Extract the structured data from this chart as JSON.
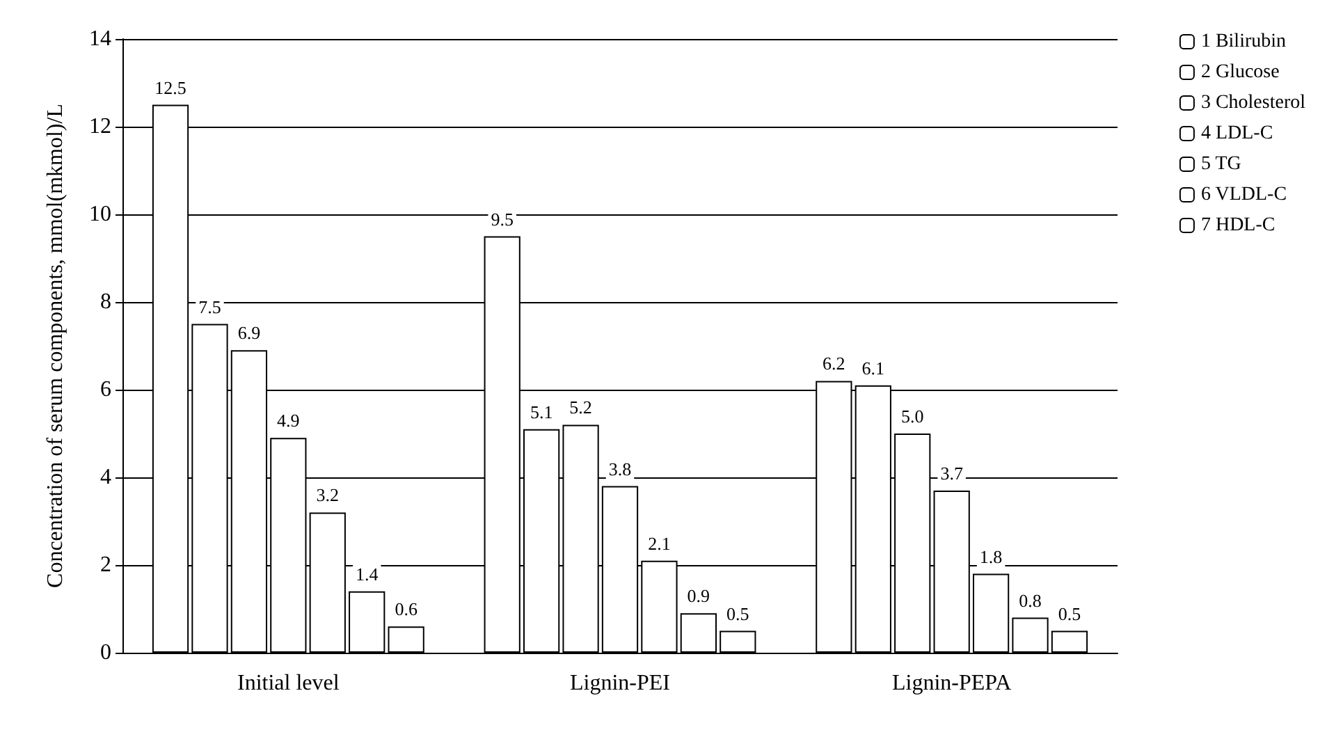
{
  "chart_data": {
    "type": "bar",
    "ylabel": "Concentration of serum components, mmol(mkmol)/L",
    "categories": [
      "Initial level",
      "Lignin-PEI",
      "Lignin-PEPA"
    ],
    "series": [
      {
        "name": "1 Bilirubin",
        "color": "#ffffff",
        "values": [
          12.5,
          9.5,
          6.2
        ],
        "value_labels": [
          "12.5",
          "9.5",
          "6.2"
        ]
      },
      {
        "name": "2 Glucose",
        "color": "#ffffff",
        "values": [
          7.5,
          5.1,
          6.1
        ],
        "value_labels": [
          "7.5",
          "5.1",
          "6.1"
        ]
      },
      {
        "name": "3 Cholesterol",
        "color": "#ffffff",
        "values": [
          6.9,
          5.2,
          5.0
        ],
        "value_labels": [
          "6.9",
          "5.2",
          "5.0"
        ]
      },
      {
        "name": "4 LDL-C",
        "color": "#ffffff",
        "values": [
          4.9,
          3.8,
          3.7
        ],
        "value_labels": [
          "4.9",
          "3.8",
          "3.7"
        ]
      },
      {
        "name": "5 TG",
        "color": "#ffffff",
        "values": [
          3.2,
          2.1,
          1.8
        ],
        "value_labels": [
          "3.2",
          "2.1",
          "1.8"
        ]
      },
      {
        "name": "6 VLDL-C",
        "color": "#ffffff",
        "values": [
          1.4,
          0.9,
          0.8
        ],
        "value_labels": [
          "1.4",
          "0.9",
          "0.8"
        ]
      },
      {
        "name": "7 HDL-C",
        "color": "#ffffff",
        "values": [
          0.6,
          0.5,
          0.5
        ],
        "value_labels": [
          "0.6",
          "0.5",
          "0.5"
        ]
      }
    ],
    "ylim": [
      0,
      14
    ],
    "yticks": [
      0,
      2,
      4,
      6,
      8,
      10,
      12,
      14
    ],
    "grid": "y",
    "legend": "right"
  }
}
